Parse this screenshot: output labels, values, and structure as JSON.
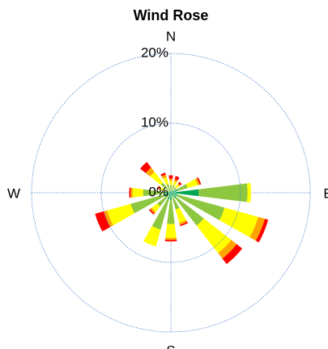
{
  "chart_data": {
    "type": "windrose",
    "title": "Wind Rose",
    "x": [
      0,
      22.5,
      45,
      67.5,
      90,
      112.5,
      135,
      157.5,
      180,
      202.5,
      225,
      247.5,
      270,
      292.5,
      315,
      337.5
    ],
    "series": [
      {
        "color": "#00a651",
        "values": [
          0.3,
          0.3,
          0.3,
          1,
          4,
          1,
          1,
          0.5,
          1,
          1,
          0.5,
          1,
          1,
          0.3,
          0.3,
          0.3
        ]
      },
      {
        "color": "#8dc63f",
        "values": [
          0.8,
          0.8,
          0.7,
          1.5,
          7,
          7,
          5,
          2,
          3.5,
          4.5,
          2,
          5,
          3,
          0.8,
          1.5,
          1
        ]
      },
      {
        "color": "#ffff00",
        "values": [
          0.6,
          0.6,
          0.5,
          1.5,
          0.5,
          5,
          5,
          2,
          2,
          2.5,
          1,
          3.5,
          1.5,
          0.5,
          2,
          1
        ]
      },
      {
        "color": "#ffa500",
        "values": [
          0.3,
          0.3,
          0.2,
          0.3,
          0,
          1,
          1,
          0.3,
          0.3,
          0,
          0.3,
          0.5,
          0.3,
          0.2,
          0.8,
          0.4
        ]
      },
      {
        "color": "#ff0000",
        "values": [
          0.5,
          0.5,
          0.3,
          0.2,
          0,
          0.5,
          1,
          0.2,
          0.2,
          0,
          0.2,
          1.3,
          0.2,
          0.2,
          1,
          0.3
        ]
      }
    ],
    "ylim": [
      0,
      20
    ],
    "yticks": [
      {
        "value": 0,
        "label": "0%"
      },
      {
        "value": 10,
        "label": "10%"
      },
      {
        "value": 20,
        "label": "20%"
      }
    ],
    "direction_labels": [
      {
        "value": 0,
        "label": "N"
      },
      {
        "value": 90,
        "label": "E"
      },
      {
        "value": 180,
        "label": "S"
      },
      {
        "value": 270,
        "label": "W"
      }
    ],
    "grid": true
  }
}
